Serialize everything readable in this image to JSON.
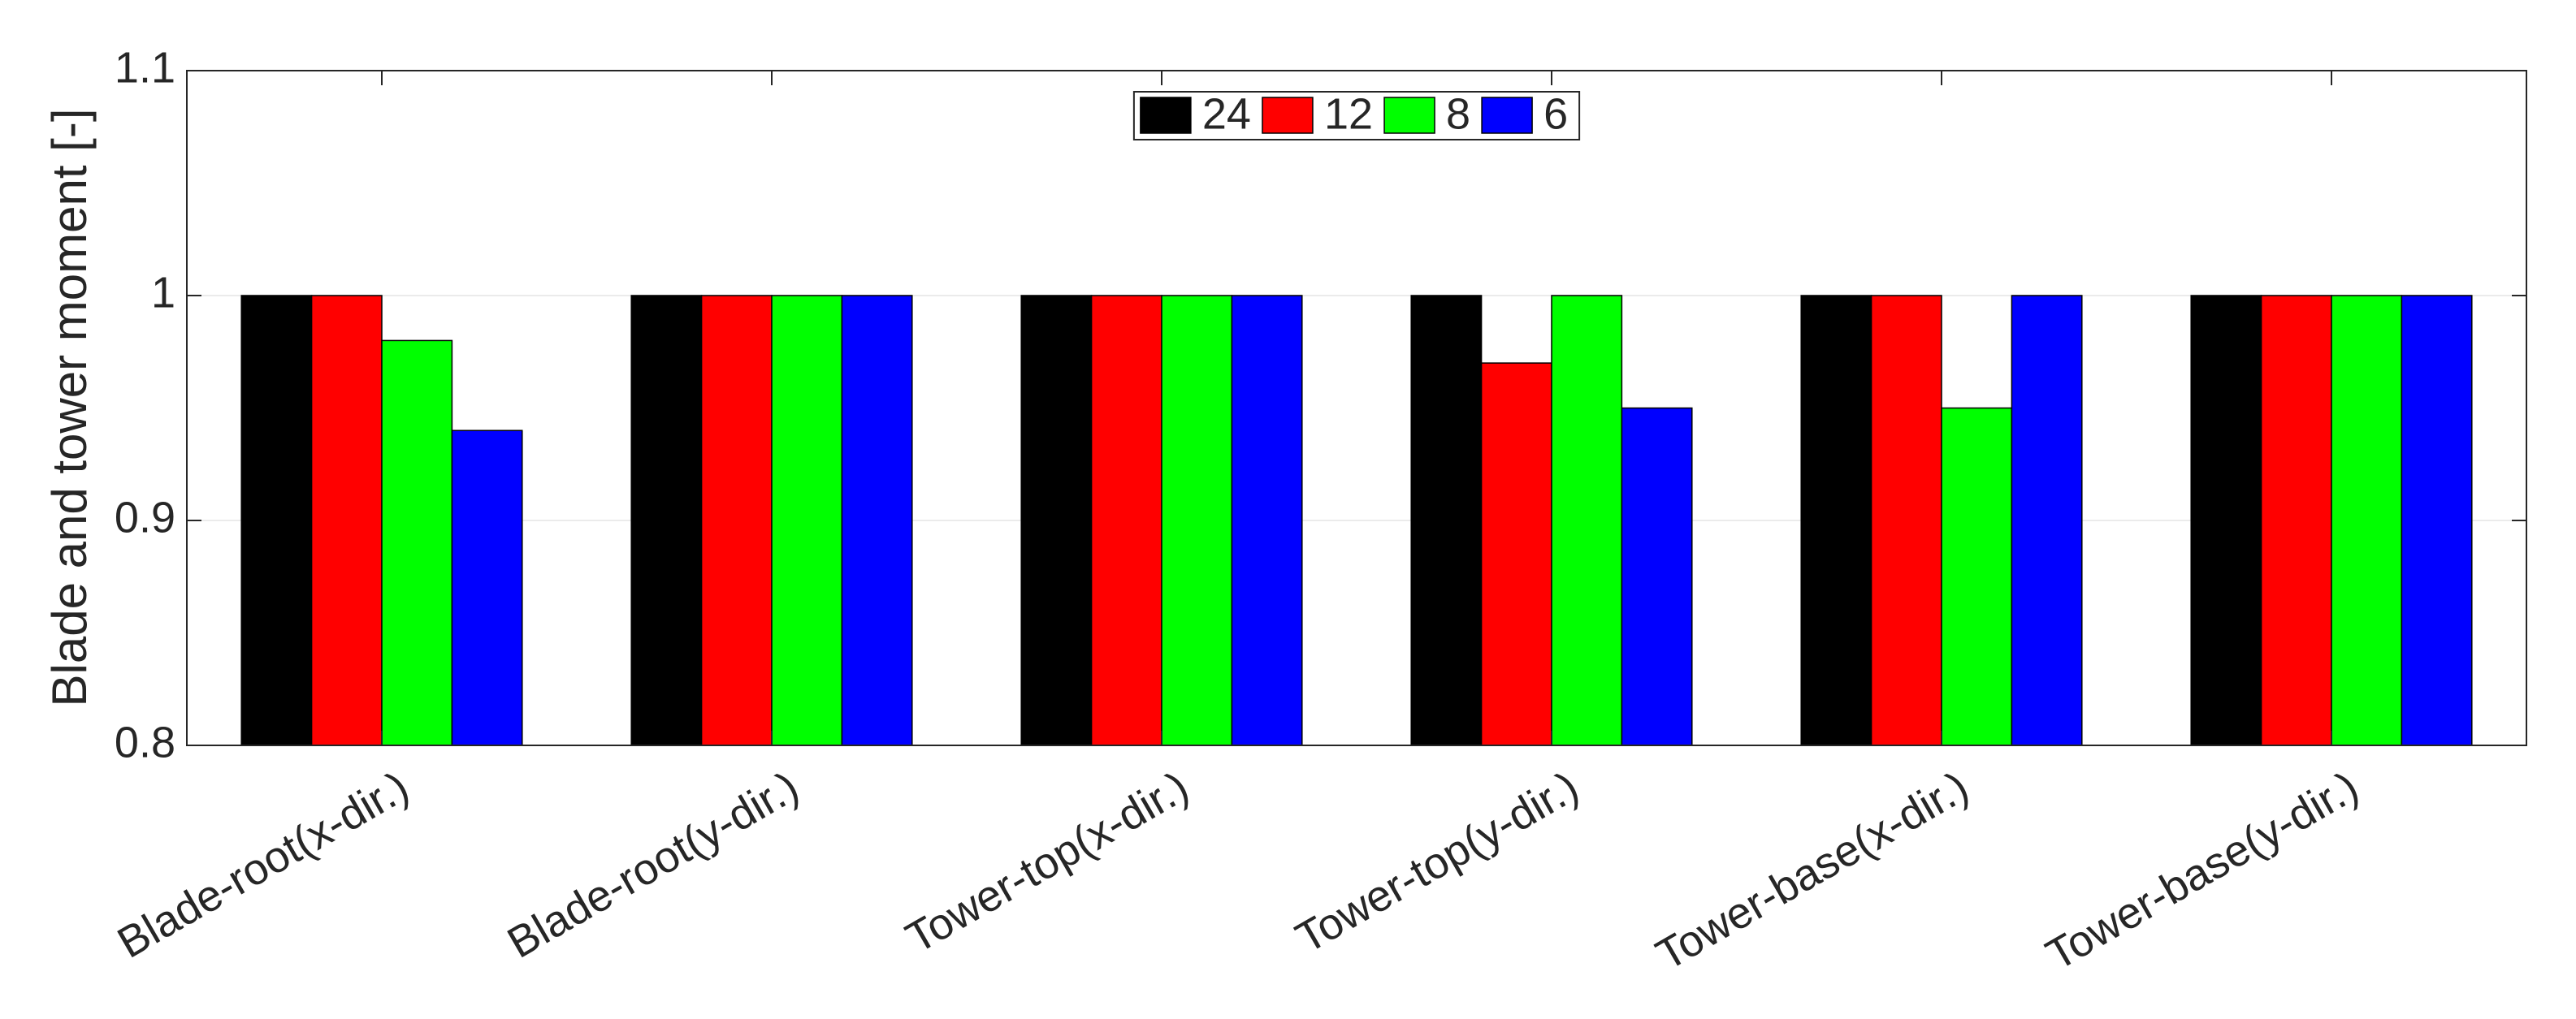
{
  "chart_data": {
    "type": "bar",
    "y_label": "Blade and tower moment [-]",
    "categories": [
      "Blade-root(x-dir.)",
      "Blade-root(y-dir.)",
      "Tower-top(x-dir.)",
      "Tower-top(y-dir.)",
      "Tower-base(x-dir.)",
      "Tower-base(y-dir.)"
    ],
    "series": [
      {
        "name": "24",
        "color": "#000000",
        "values": [
          1,
          1,
          1,
          1,
          1,
          1
        ]
      },
      {
        "name": "12",
        "color": "#ff0000",
        "values": [
          1,
          1,
          1,
          0.97,
          1,
          1
        ]
      },
      {
        "name": "8",
        "color": "#00ff00",
        "values": [
          0.98,
          1,
          1,
          1,
          0.95,
          1
        ]
      },
      {
        "name": "6",
        "color": "#0000ff",
        "values": [
          0.94,
          1,
          1,
          0.95,
          1,
          1
        ]
      }
    ],
    "ylim": [
      0.8,
      1.1
    ],
    "yticks": [
      0.8,
      0.9,
      1,
      1.1
    ],
    "grid": true,
    "legend": "upper center"
  }
}
